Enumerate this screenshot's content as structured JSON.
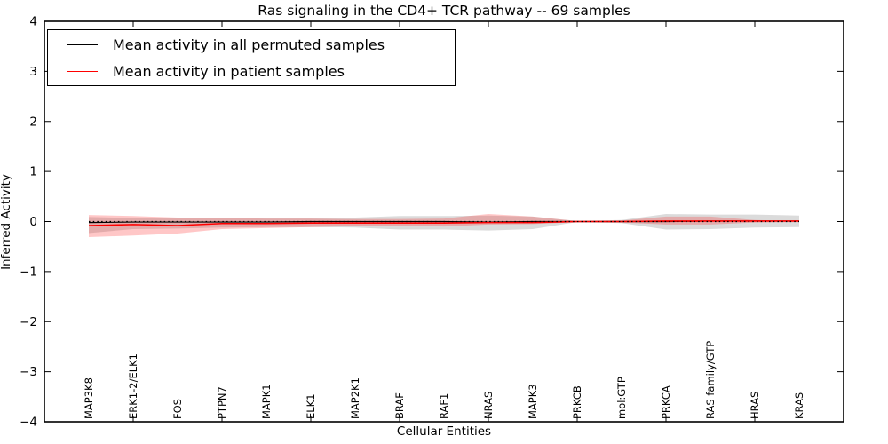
{
  "title": "Ras signaling in the CD4+ TCR pathway -- 69 samples",
  "chart_data": {
    "type": "line",
    "title": "Ras signaling in the CD4+ TCR pathway -- 69 samples",
    "xlabel": "Cellular Entities",
    "ylabel": "Inferred Activity",
    "ylim": [
      -4,
      4
    ],
    "yticks": [
      -4,
      -3,
      -2,
      -1,
      0,
      1,
      2,
      3,
      4
    ],
    "grid": false,
    "legend_position": "upper left",
    "categories": [
      "MAP3K8",
      "ERK1-2/ELK1",
      "FOS",
      "PTPN7",
      "MAPK1",
      "ELK1",
      "MAP2K1",
      "BRAF",
      "RAF1",
      "NRAS",
      "MAPK3",
      "PRKCB",
      "mol:GTP",
      "PRKCA",
      "RAS family/GTP",
      "HRAS",
      "KRAS"
    ],
    "series": [
      {
        "name": "Mean activity in all permuted samples",
        "color": "#000000",
        "style": "solid",
        "values": [
          -0.02,
          -0.01,
          -0.01,
          -0.01,
          -0.01,
          0.0,
          0.0,
          0.0,
          0.0,
          -0.01,
          0.0,
          0.0,
          0.0,
          0.0,
          0.01,
          0.01,
          0.01
        ]
      },
      {
        "name": "Mean activity in patient samples",
        "color": "#ff0000",
        "style": "solid",
        "values": [
          -0.08,
          -0.06,
          -0.08,
          -0.04,
          -0.04,
          -0.03,
          -0.03,
          -0.03,
          -0.03,
          -0.02,
          -0.02,
          0.0,
          0.0,
          0.01,
          0.01,
          0.01,
          0.01
        ]
      }
    ],
    "bands": [
      {
        "name": "permuted-samples-range",
        "color": "rgba(0,0,0,0.14)",
        "upper": [
          0.09,
          0.07,
          0.07,
          0.08,
          0.07,
          0.07,
          0.08,
          0.11,
          0.11,
          0.12,
          0.1,
          0.01,
          0.03,
          0.15,
          0.14,
          0.14,
          0.12
        ],
        "lower": [
          -0.23,
          -0.15,
          -0.14,
          -0.12,
          -0.11,
          -0.11,
          -0.12,
          -0.16,
          -0.16,
          -0.18,
          -0.15,
          -0.01,
          -0.03,
          -0.16,
          -0.15,
          -0.12,
          -0.11
        ]
      },
      {
        "name": "patient-samples-range",
        "color": "rgba(255,0,0,0.22)",
        "upper": [
          0.13,
          0.11,
          0.08,
          0.07,
          0.06,
          0.06,
          0.05,
          0.05,
          0.06,
          0.15,
          0.1,
          0.01,
          0.02,
          0.1,
          0.1,
          0.03,
          0.01
        ],
        "lower": [
          -0.31,
          -0.28,
          -0.24,
          -0.15,
          -0.13,
          -0.11,
          -0.09,
          -0.08,
          -0.1,
          -0.06,
          -0.05,
          -0.01,
          -0.02,
          -0.06,
          -0.06,
          -0.02,
          -0.01
        ]
      }
    ],
    "zero_line": {
      "y": 0,
      "style": "dotted",
      "color": "#000000"
    }
  }
}
